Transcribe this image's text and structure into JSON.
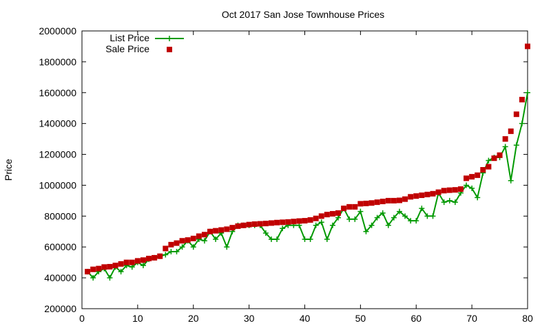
{
  "chart_data": {
    "type": "scatter",
    "title": "Oct 2017 San Jose Townhouse Prices",
    "xlabel": "",
    "ylabel": "Price",
    "xlim": [
      0,
      80
    ],
    "ylim": [
      200000,
      2000000
    ],
    "xticks": [
      0,
      10,
      20,
      30,
      40,
      50,
      60,
      70,
      80
    ],
    "yticks": [
      200000,
      400000,
      600000,
      800000,
      1000000,
      1200000,
      1400000,
      1600000,
      1800000,
      2000000
    ],
    "grid": false,
    "legend_position": "top-left",
    "series": [
      {
        "name": "List Price",
        "style": "line-with-plus-markers",
        "color": "#009900",
        "x": [
          1,
          2,
          3,
          4,
          5,
          6,
          7,
          8,
          9,
          10,
          11,
          12,
          13,
          14,
          15,
          16,
          17,
          18,
          19,
          20,
          21,
          22,
          23,
          24,
          25,
          26,
          27,
          28,
          29,
          30,
          31,
          32,
          33,
          34,
          35,
          36,
          37,
          38,
          39,
          40,
          41,
          42,
          43,
          44,
          45,
          46,
          47,
          48,
          49,
          50,
          51,
          52,
          53,
          54,
          55,
          56,
          57,
          58,
          59,
          60,
          61,
          62,
          63,
          64,
          65,
          66,
          67,
          68,
          69,
          70,
          71,
          72,
          73,
          74,
          75,
          76,
          77,
          78,
          79,
          80
        ],
        "values": [
          440000,
          400000,
          440000,
          460000,
          400000,
          470000,
          440000,
          480000,
          470000,
          500000,
          480000,
          520000,
          530000,
          540000,
          550000,
          570000,
          570000,
          600000,
          640000,
          600000,
          650000,
          640000,
          700000,
          650000,
          690000,
          600000,
          700000,
          740000,
          740000,
          740000,
          740000,
          740000,
          690000,
          650000,
          650000,
          720000,
          740000,
          740000,
          740000,
          650000,
          650000,
          740000,
          760000,
          650000,
          740000,
          790000,
          850000,
          780000,
          780000,
          830000,
          700000,
          740000,
          790000,
          820000,
          740000,
          790000,
          830000,
          800000,
          770000,
          770000,
          850000,
          800000,
          800000,
          950000,
          890000,
          900000,
          890000,
          950000,
          1000000,
          980000,
          920000,
          1080000,
          1160000,
          1180000,
          1180000,
          1250000,
          1030000,
          1260000,
          1400000,
          1600000
        ]
      },
      {
        "name": "Sale Price",
        "style": "square-markers",
        "color": "#c00000",
        "x": [
          1,
          2,
          3,
          4,
          5,
          6,
          7,
          8,
          9,
          10,
          11,
          12,
          13,
          14,
          15,
          16,
          17,
          18,
          19,
          20,
          21,
          22,
          23,
          24,
          25,
          26,
          27,
          28,
          29,
          30,
          31,
          32,
          33,
          34,
          35,
          36,
          37,
          38,
          39,
          40,
          41,
          42,
          43,
          44,
          45,
          46,
          47,
          48,
          49,
          50,
          51,
          52,
          53,
          54,
          55,
          56,
          57,
          58,
          59,
          60,
          61,
          62,
          63,
          64,
          65,
          66,
          67,
          68,
          69,
          70,
          71,
          72,
          73,
          74,
          75,
          76,
          77,
          78,
          79,
          80
        ],
        "values": [
          440000,
          455000,
          460000,
          470000,
          472000,
          480000,
          490000,
          500000,
          500000,
          510000,
          515000,
          525000,
          530000,
          540000,
          590000,
          615000,
          625000,
          640000,
          645000,
          655000,
          670000,
          680000,
          700000,
          705000,
          710000,
          715000,
          725000,
          735000,
          740000,
          745000,
          748000,
          750000,
          752000,
          755000,
          758000,
          760000,
          762000,
          765000,
          768000,
          770000,
          775000,
          785000,
          800000,
          810000,
          815000,
          820000,
          850000,
          860000,
          860000,
          880000,
          882000,
          885000,
          890000,
          895000,
          900000,
          900000,
          902000,
          910000,
          925000,
          930000,
          935000,
          940000,
          945000,
          955000,
          965000,
          968000,
          970000,
          975000,
          1045000,
          1055000,
          1065000,
          1100000,
          1120000,
          1175000,
          1195000,
          1300000,
          1350000,
          1460000,
          1555000,
          1900000
        ]
      }
    ]
  }
}
